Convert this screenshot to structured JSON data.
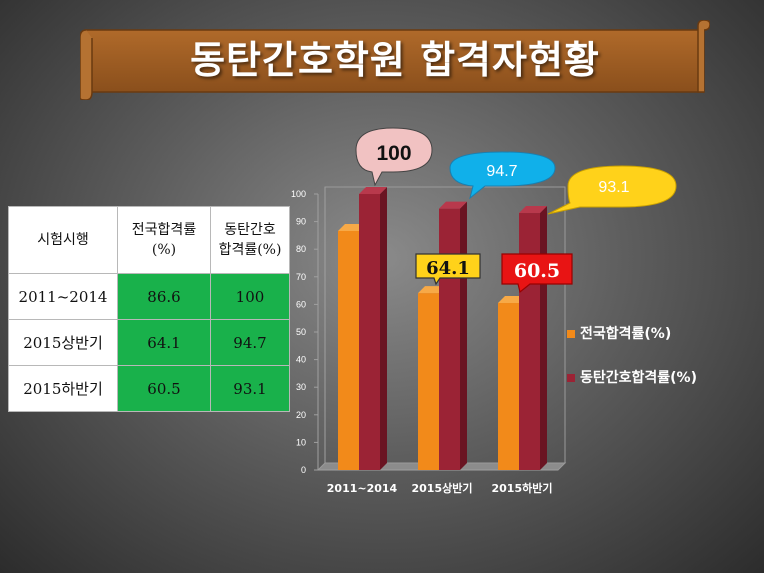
{
  "title": "동탄간호학원 합격자현황",
  "table": {
    "headers": [
      "시험시행",
      "전국합격률\n(%)",
      "동탄간호\n합격률(%)"
    ],
    "rows": [
      [
        "2011~2014",
        "86.6",
        "100"
      ],
      [
        "2015상반기",
        "64.1",
        "94.7"
      ],
      [
        "2015하반기",
        "60.5",
        "93.1"
      ]
    ]
  },
  "callouts": {
    "c100": "100",
    "c947": "94.7",
    "c931": "93.1",
    "c641": "64.1",
    "c605": "60.5"
  },
  "colors": {
    "national": "#f28a1a",
    "dongtan": "#9b2335",
    "table_fill": "#19b14b",
    "banner": "#9a5a20"
  },
  "chart_data": {
    "type": "bar",
    "categories": [
      "2011~2014",
      "2015상반기",
      "2015하반기"
    ],
    "series": [
      {
        "name": "전국합격률(%)",
        "values": [
          86.6,
          64.1,
          60.5
        ]
      },
      {
        "name": "동탄간호합격률(%)",
        "values": [
          100,
          94.7,
          93.1
        ]
      }
    ],
    "ylim": [
      0,
      100
    ],
    "yticks": [
      0,
      10,
      20,
      30,
      40,
      50,
      60,
      70,
      80,
      90,
      100
    ],
    "legend_position": "right",
    "grid": false
  }
}
